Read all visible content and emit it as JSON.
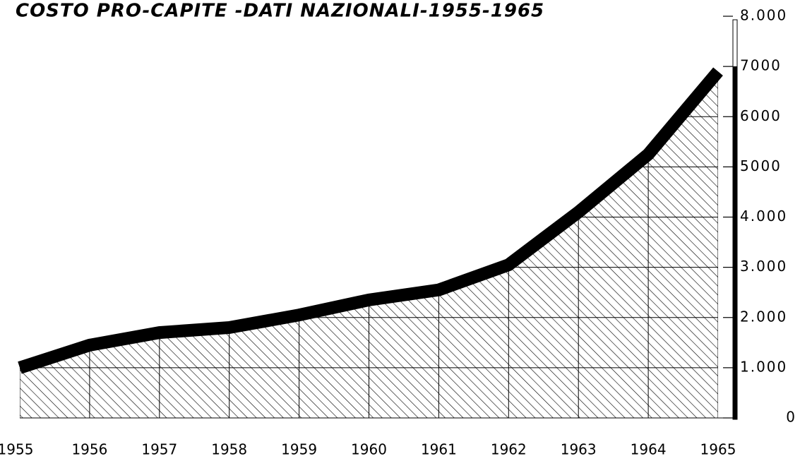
{
  "chart_data": {
    "type": "area",
    "title": "COSTO PRO-CAPITE -DATI NAZIONALI-1955-1965",
    "categories": [
      "1955",
      "1956",
      "1957",
      "1958",
      "1959",
      "1960",
      "1961",
      "1962",
      "1963",
      "1964",
      "1965"
    ],
    "values": [
      1000,
      1450,
      1700,
      1800,
      2050,
      2350,
      2550,
      3050,
      4100,
      5250,
      6900
    ],
    "color": "#000000",
    "ylim": [
      0,
      8000
    ],
    "yticks": [
      0,
      {
        "value": 1000,
        "label": "1.000"
      },
      {
        "value": 2000,
        "label": "2.000"
      },
      {
        "value": 3000,
        "label": "3.000"
      },
      {
        "value": 4000,
        "label": "4.000"
      },
      {
        "value": 5000,
        "label": "5000"
      },
      {
        "value": 6000,
        "label": "6000"
      },
      {
        "value": 7000,
        "label": "7000"
      },
      {
        "value": 8000,
        "label": "8.000"
      }
    ],
    "grid": true
  }
}
